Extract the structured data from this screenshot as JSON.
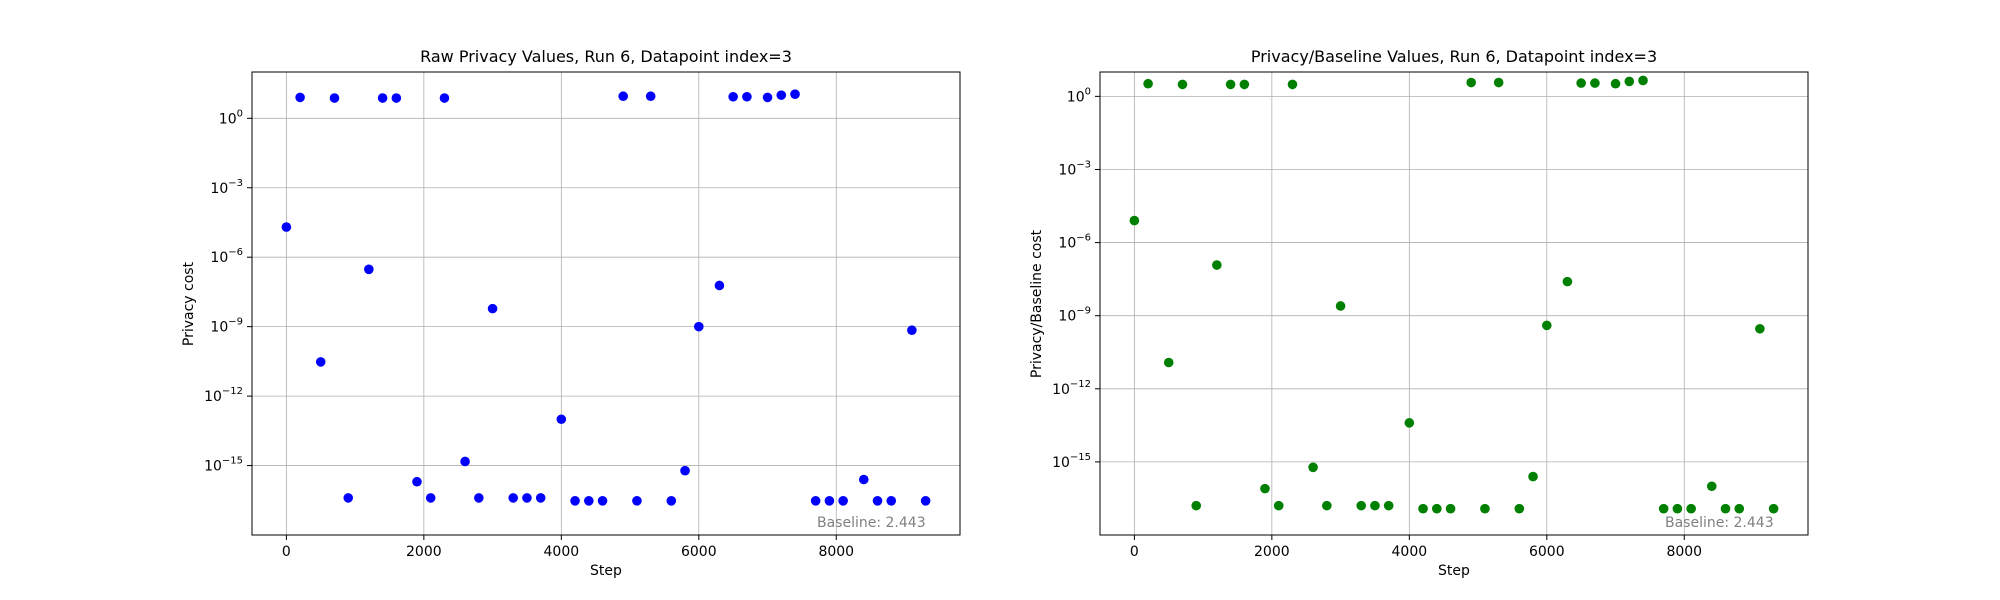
{
  "chart_data": [
    {
      "type": "scatter",
      "title": "Raw Privacy Values, Run 6, Datapoint index=3",
      "xlabel": "Step",
      "ylabel": "Privacy cost",
      "yscale": "log",
      "grid": true,
      "xlim": [
        -500,
        9800
      ],
      "ylim": [
        1e-18,
        100.0
      ],
      "xticks": [
        0,
        2000,
        4000,
        6000,
        8000
      ],
      "yticks": [
        1,
        0.001,
        1e-06,
        1e-09,
        1e-12,
        1e-15
      ],
      "xtick_labels": [
        "0",
        "2000",
        "4000",
        "6000",
        "8000"
      ],
      "ytick_labels": [
        {
          "base": "10",
          "exp": "0"
        },
        {
          "base": "10",
          "exp": "−3"
        },
        {
          "base": "10",
          "exp": "−6"
        },
        {
          "base": "10",
          "exp": "−9"
        },
        {
          "base": "10",
          "exp": "−12"
        },
        {
          "base": "10",
          "exp": "−15"
        }
      ],
      "annotation": "Baseline: 2.443",
      "color": "#0000ff",
      "x": [
        0,
        200,
        500,
        700,
        900,
        1200,
        1400,
        1600,
        1900,
        2100,
        2300,
        2600,
        2800,
        3000,
        3300,
        3500,
        3700,
        4000,
        4200,
        4400,
        4600,
        4900,
        5100,
        5300,
        5600,
        5800,
        6000,
        6300,
        6500,
        6700,
        7000,
        7200,
        7400,
        7700,
        7900,
        8100,
        8400,
        8600,
        8800,
        9100,
        9300
      ],
      "y": [
        2e-05,
        8,
        3e-11,
        7.5,
        4e-17,
        3e-07,
        7.5,
        7.5,
        2e-16,
        4e-17,
        7.5,
        1.5e-15,
        4e-17,
        6e-09,
        4e-17,
        4e-17,
        4e-17,
        1e-13,
        3e-17,
        3e-17,
        3e-17,
        9,
        3e-17,
        9,
        3e-17,
        6e-16,
        1e-09,
        6e-08,
        8.5,
        8.5,
        8,
        10,
        11,
        3e-17,
        3e-17,
        3e-17,
        2.5e-16,
        3e-17,
        3e-17,
        7e-10,
        3e-17
      ]
    },
    {
      "type": "scatter",
      "title": "Privacy/Baseline Values, Run 6, Datapoint index=3",
      "xlabel": "Step",
      "ylabel": "Privacy/Baseline cost",
      "yscale": "log",
      "grid": true,
      "xlim": [
        -500,
        9800
      ],
      "ylim": [
        1e-18,
        10.0
      ],
      "xticks": [
        0,
        2000,
        4000,
        6000,
        8000
      ],
      "yticks": [
        1,
        0.001,
        1e-06,
        1e-09,
        1e-12,
        1e-15
      ],
      "xtick_labels": [
        "0",
        "2000",
        "4000",
        "6000",
        "8000"
      ],
      "ytick_labels": [
        {
          "base": "10",
          "exp": "0"
        },
        {
          "base": "10",
          "exp": "−3"
        },
        {
          "base": "10",
          "exp": "−6"
        },
        {
          "base": "10",
          "exp": "−9"
        },
        {
          "base": "10",
          "exp": "−12"
        },
        {
          "base": "10",
          "exp": "−15"
        }
      ],
      "annotation": "Baseline: 2.443",
      "color": "#008000",
      "x": [
        0,
        200,
        500,
        700,
        900,
        1200,
        1400,
        1600,
        1900,
        2100,
        2300,
        2600,
        2800,
        3000,
        3300,
        3500,
        3700,
        4000,
        4200,
        4400,
        4600,
        4900,
        5100,
        5300,
        5600,
        5800,
        6000,
        6300,
        6500,
        6700,
        7000,
        7200,
        7400,
        7700,
        7900,
        8100,
        8400,
        8600,
        8800,
        9100,
        9300
      ],
      "y": [
        8e-06,
        3.3,
        1.2e-11,
        3.1,
        1.6e-17,
        1.2e-07,
        3.1,
        3.1,
        8e-17,
        1.6e-17,
        3.1,
        6e-16,
        1.6e-17,
        2.5e-09,
        1.6e-17,
        1.6e-17,
        1.6e-17,
        4e-14,
        1.2e-17,
        1.2e-17,
        1.2e-17,
        3.7,
        1.2e-17,
        3.7,
        1.2e-17,
        2.5e-16,
        4e-10,
        2.5e-08,
        3.5,
        3.5,
        3.3,
        4.1,
        4.5,
        1.2e-17,
        1.2e-17,
        1.2e-17,
        1e-16,
        1.2e-17,
        1.2e-17,
        2.9e-10,
        1.2e-17
      ]
    }
  ]
}
